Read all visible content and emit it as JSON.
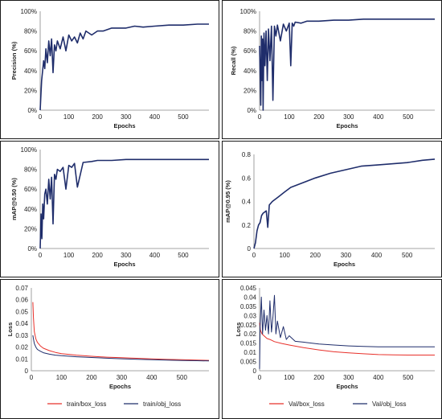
{
  "chart_data": [
    {
      "type": "line",
      "ylabel": "Precision (%)",
      "xlabel": "Epochs",
      "xlim": [
        0,
        590
      ],
      "ylim": [
        0,
        1
      ],
      "x_ticks": [
        0,
        100,
        200,
        300,
        400,
        500
      ],
      "y_ticks": [
        0,
        0.2,
        0.4,
        0.6,
        0.8,
        1.0
      ],
      "y_tick_labels": [
        "0%",
        "20%",
        "40%",
        "60%",
        "80%",
        "100%"
      ],
      "grid": false,
      "series": [
        {
          "color": "#1f2d6b",
          "x": [
            0,
            2,
            5,
            8,
            12,
            16,
            20,
            25,
            30,
            35,
            40,
            45,
            50,
            55,
            60,
            70,
            80,
            90,
            100,
            110,
            120,
            130,
            140,
            150,
            160,
            180,
            200,
            220,
            250,
            280,
            300,
            330,
            360,
            400,
            450,
            500,
            550,
            590
          ],
          "values": [
            0.0,
            0.12,
            0.3,
            0.38,
            0.5,
            0.42,
            0.62,
            0.48,
            0.7,
            0.55,
            0.72,
            0.38,
            0.66,
            0.6,
            0.7,
            0.62,
            0.74,
            0.6,
            0.76,
            0.7,
            0.74,
            0.68,
            0.78,
            0.72,
            0.8,
            0.76,
            0.8,
            0.8,
            0.83,
            0.83,
            0.83,
            0.85,
            0.84,
            0.85,
            0.86,
            0.86,
            0.87,
            0.87
          ]
        }
      ]
    },
    {
      "type": "line",
      "ylabel": "Recall (%)",
      "xlabel": "Epochs",
      "xlim": [
        0,
        590
      ],
      "ylim": [
        0,
        1
      ],
      "x_ticks": [
        0,
        100,
        200,
        300,
        400,
        500
      ],
      "y_ticks": [
        0,
        0.2,
        0.4,
        0.6,
        0.8,
        1.0
      ],
      "y_tick_labels": [
        "0%",
        "20%",
        "40%",
        "60%",
        "80%",
        "100%"
      ],
      "grid": false,
      "series": [
        {
          "color": "#1f2d6b",
          "x": [
            0,
            4,
            6,
            8,
            10,
            12,
            15,
            18,
            22,
            26,
            30,
            35,
            40,
            45,
            50,
            55,
            60,
            70,
            80,
            90,
            100,
            105,
            110,
            115,
            120,
            140,
            160,
            200,
            250,
            300,
            350,
            400,
            500,
            590
          ],
          "values": [
            0.65,
            0.05,
            0.75,
            0.3,
            0.72,
            0.0,
            0.78,
            0.45,
            0.8,
            0.3,
            0.82,
            0.5,
            0.85,
            0.1,
            0.85,
            0.75,
            0.86,
            0.7,
            0.87,
            0.8,
            0.88,
            0.45,
            0.88,
            0.85,
            0.89,
            0.88,
            0.9,
            0.9,
            0.91,
            0.91,
            0.92,
            0.92,
            0.92,
            0.92
          ]
        }
      ]
    },
    {
      "type": "line",
      "ylabel": "mAP@0.50 (%)",
      "xlabel": "Epochs",
      "xlim": [
        0,
        590
      ],
      "ylim": [
        0,
        1
      ],
      "x_ticks": [
        0,
        100,
        200,
        300,
        400,
        500
      ],
      "y_ticks": [
        0,
        0.2,
        0.4,
        0.6,
        0.8,
        1.0
      ],
      "y_tick_labels": [
        "0%",
        "20%",
        "40%",
        "60%",
        "80%",
        "100%"
      ],
      "grid": false,
      "series": [
        {
          "color": "#1f2d6b",
          "x": [
            0,
            3,
            6,
            9,
            12,
            16,
            20,
            25,
            30,
            35,
            40,
            45,
            50,
            55,
            60,
            70,
            80,
            90,
            100,
            110,
            120,
            130,
            150,
            180,
            200,
            250,
            300,
            350,
            400,
            500,
            590
          ],
          "values": [
            0.0,
            0.35,
            0.1,
            0.45,
            0.3,
            0.55,
            0.6,
            0.45,
            0.7,
            0.5,
            0.72,
            0.25,
            0.75,
            0.7,
            0.8,
            0.78,
            0.82,
            0.6,
            0.84,
            0.82,
            0.86,
            0.62,
            0.87,
            0.88,
            0.89,
            0.89,
            0.9,
            0.9,
            0.9,
            0.9,
            0.9
          ]
        }
      ]
    },
    {
      "type": "line",
      "ylabel": "mAP@0.95 (%)",
      "xlabel": "Epochs",
      "xlim": [
        0,
        590
      ],
      "ylim": [
        0,
        0.8
      ],
      "x_ticks": [
        0,
        100,
        200,
        300,
        400,
        500
      ],
      "y_ticks": [
        0,
        0.2,
        0.4,
        0.6,
        0.8
      ],
      "y_tick_labels": [
        "0",
        "0.2",
        "0.4",
        "0.6",
        "0.8"
      ],
      "grid": false,
      "series": [
        {
          "color": "#1f2d6b",
          "x": [
            0,
            5,
            10,
            15,
            20,
            25,
            30,
            40,
            45,
            50,
            60,
            70,
            80,
            100,
            120,
            150,
            200,
            250,
            300,
            350,
            400,
            450,
            500,
            550,
            590
          ],
          "values": [
            0.0,
            0.05,
            0.15,
            0.2,
            0.22,
            0.28,
            0.3,
            0.32,
            0.18,
            0.37,
            0.4,
            0.42,
            0.44,
            0.48,
            0.52,
            0.55,
            0.6,
            0.64,
            0.67,
            0.7,
            0.71,
            0.72,
            0.73,
            0.75,
            0.76
          ]
        }
      ]
    },
    {
      "type": "line",
      "ylabel": "Loss",
      "xlabel": "Epochs",
      "xlim": [
        0,
        590
      ],
      "ylim": [
        0,
        0.07
      ],
      "x_ticks": [
        0,
        100,
        200,
        300,
        400,
        500
      ],
      "y_ticks": [
        0,
        0.01,
        0.02,
        0.03,
        0.04,
        0.05,
        0.06,
        0.07
      ],
      "y_tick_labels": [
        "0",
        "0.01",
        "0.02",
        "0.03",
        "0.04",
        "0.05",
        "0.06",
        "0.07"
      ],
      "grid": false,
      "legend": "bottom",
      "series": [
        {
          "name": "train/box_loss",
          "color": "#e8302a",
          "x": [
            5,
            7,
            10,
            15,
            20,
            30,
            40,
            60,
            80,
            100,
            150,
            200,
            250,
            300,
            350,
            400,
            450,
            500,
            550,
            590
          ],
          "values": [
            0.058,
            0.045,
            0.033,
            0.027,
            0.024,
            0.021,
            0.019,
            0.017,
            0.0155,
            0.0145,
            0.0132,
            0.0122,
            0.0115,
            0.011,
            0.0105,
            0.01,
            0.0096,
            0.0093,
            0.009,
            0.0088
          ]
        },
        {
          "name": "train/obj_loss",
          "color": "#1f2d6b",
          "x": [
            5,
            7,
            10,
            15,
            20,
            30,
            40,
            60,
            80,
            100,
            150,
            200,
            250,
            300,
            350,
            400,
            450,
            500,
            550,
            590
          ],
          "values": [
            0.03,
            0.027,
            0.023,
            0.02,
            0.018,
            0.0165,
            0.0152,
            0.014,
            0.0132,
            0.0127,
            0.0118,
            0.0112,
            0.0106,
            0.0101,
            0.0097,
            0.0093,
            0.009,
            0.0087,
            0.0085,
            0.0083
          ]
        }
      ]
    },
    {
      "type": "line",
      "ylabel": "Loss",
      "xlabel": "Epochs",
      "xlim": [
        0,
        590
      ],
      "ylim": [
        0,
        0.045
      ],
      "x_ticks": [
        0,
        100,
        200,
        300,
        400,
        500
      ],
      "y_ticks": [
        0,
        0.005,
        0.01,
        0.015,
        0.02,
        0.025,
        0.03,
        0.035,
        0.04,
        0.045
      ],
      "y_tick_labels": [
        "0",
        "0.005",
        "0.01",
        "0.015",
        "0.02",
        "0.025",
        "0.03",
        "0.035",
        "0.04",
        "0.045"
      ],
      "grid": false,
      "legend": "bottom",
      "series": [
        {
          "name": "Val/box_loss",
          "color": "#e8302a",
          "x": [
            0,
            3,
            8,
            15,
            25,
            35,
            50,
            75,
            100,
            150,
            200,
            250,
            300,
            350,
            400,
            450,
            500,
            550,
            590
          ],
          "values": [
            0.026,
            0.022,
            0.02,
            0.019,
            0.0175,
            0.017,
            0.0158,
            0.0148,
            0.014,
            0.0125,
            0.0113,
            0.0103,
            0.0097,
            0.0092,
            0.0088,
            0.0086,
            0.0085,
            0.0085,
            0.0085
          ]
        },
        {
          "name": "Val/obj_loss",
          "color": "#1f2d6b",
          "x": [
            0,
            2,
            6,
            10,
            15,
            20,
            25,
            30,
            35,
            40,
            45,
            50,
            55,
            60,
            70,
            80,
            90,
            100,
            120,
            150,
            200,
            250,
            300,
            350,
            400,
            450,
            500,
            590
          ],
          "values": [
            0.001,
            0.024,
            0.04,
            0.02,
            0.033,
            0.022,
            0.03,
            0.02,
            0.038,
            0.021,
            0.029,
            0.041,
            0.02,
            0.027,
            0.018,
            0.024,
            0.017,
            0.019,
            0.016,
            0.0155,
            0.0145,
            0.014,
            0.0135,
            0.0132,
            0.013,
            0.013,
            0.013,
            0.013
          ]
        }
      ]
    }
  ]
}
